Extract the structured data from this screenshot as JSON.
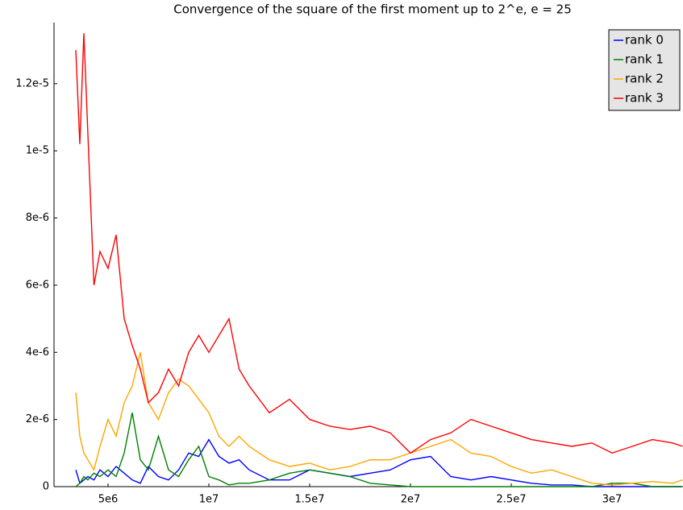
{
  "chart_data": {
    "type": "line",
    "title": "Convergence of the square of the first moment up to 2^e, e = 25",
    "x": [
      3400000,
      3600000,
      3800000,
      4000000,
      4300000,
      4600000,
      5000000,
      5400000,
      5800000,
      6200000,
      6600000,
      7000000,
      7500000,
      8000000,
      8500000,
      9000000,
      9500000,
      10000000,
      10500000,
      11000000,
      11500000,
      12000000,
      13000000,
      14000000,
      15000000,
      16000000,
      17000000,
      18000000,
      19000000,
      20000000,
      21000000,
      22000000,
      23000000,
      24000000,
      25000000,
      26000000,
      27000000,
      28000000,
      29000000,
      30000000,
      31000000,
      32000000,
      33000000,
      33500000
    ],
    "series": [
      {
        "name": "rank 0",
        "color": "#0000ff",
        "values": [
          5e-07,
          1e-07,
          2e-07,
          3e-07,
          2e-07,
          5e-07,
          3e-07,
          6e-07,
          4e-07,
          2e-07,
          1e-07,
          6e-07,
          3e-07,
          2e-07,
          5e-07,
          1e-06,
          9e-07,
          1.4e-06,
          9e-07,
          7e-07,
          8e-07,
          5e-07,
          2e-07,
          2e-07,
          5e-07,
          4e-07,
          3e-07,
          4e-07,
          5e-07,
          8e-07,
          9e-07,
          3e-07,
          2e-07,
          3e-07,
          2e-07,
          1e-07,
          5e-08,
          5e-08,
          0,
          0,
          0,
          0,
          0,
          0
        ]
      },
      {
        "name": "rank 1",
        "color": "#008000",
        "values": [
          0,
          1e-07,
          3e-07,
          2e-07,
          4e-07,
          3e-07,
          5e-07,
          3e-07,
          1e-06,
          2.2e-06,
          8e-07,
          5e-07,
          1.5e-06,
          5e-07,
          3e-07,
          8e-07,
          1.2e-06,
          3e-07,
          2e-07,
          5e-08,
          1e-07,
          1e-07,
          2e-07,
          4e-07,
          5e-07,
          4e-07,
          3e-07,
          1e-07,
          5e-08,
          0,
          0,
          0,
          0,
          0,
          0,
          0,
          0,
          0,
          0,
          1e-07,
          1e-07,
          0,
          0,
          0
        ]
      },
      {
        "name": "rank 2",
        "color": "#ffa500",
        "values": [
          2.8e-06,
          1.5e-06,
          1e-06,
          8e-07,
          5e-07,
          1.2e-06,
          2e-06,
          1.5e-06,
          2.5e-06,
          3e-06,
          4e-06,
          2.5e-06,
          2e-06,
          2.8e-06,
          3.2e-06,
          3e-06,
          2.6e-06,
          2.2e-06,
          1.5e-06,
          1.2e-06,
          1.5e-06,
          1.2e-06,
          8e-07,
          6e-07,
          7e-07,
          5e-07,
          6e-07,
          8e-07,
          8e-07,
          1e-06,
          1.2e-06,
          1.4e-06,
          1e-06,
          9e-07,
          6e-07,
          4e-07,
          5e-07,
          3e-07,
          1e-07,
          5e-08,
          1e-07,
          1.5e-07,
          1e-07,
          2e-07
        ]
      },
      {
        "name": "rank 3",
        "color": "#ff0000",
        "values": [
          1.3e-05,
          1.02e-05,
          1.35e-05,
          1.05e-05,
          6e-06,
          7e-06,
          6.5e-06,
          7.5e-06,
          5e-06,
          4.2e-06,
          3.5e-06,
          2.5e-06,
          2.8e-06,
          3.5e-06,
          3e-06,
          4e-06,
          4.5e-06,
          4e-06,
          4.5e-06,
          5e-06,
          3.5e-06,
          3e-06,
          2.2e-06,
          2.6e-06,
          2e-06,
          1.8e-06,
          1.7e-06,
          1.8e-06,
          1.6e-06,
          1e-06,
          1.4e-06,
          1.6e-06,
          2e-06,
          1.8e-06,
          1.6e-06,
          1.4e-06,
          1.3e-06,
          1.2e-06,
          1.3e-06,
          1e-06,
          1.2e-06,
          1.4e-06,
          1.3e-06,
          1.2e-06
        ]
      }
    ],
    "xlim": [
      2320000,
      33480000
    ],
    "ylim": [
      0,
      1.37e-05
    ],
    "xticks": [
      {
        "value": 5000000,
        "label": "5e6"
      },
      {
        "value": 10000000,
        "label": "1e7"
      },
      {
        "value": 15000000,
        "label": "1.5e7"
      },
      {
        "value": 20000000,
        "label": "2e7"
      },
      {
        "value": 25000000,
        "label": "2.5e7"
      },
      {
        "value": 30000000,
        "label": "3e7"
      }
    ],
    "yticks": [
      0,
      {
        "value": 2e-06,
        "label": "2e-6"
      },
      {
        "value": 4e-06,
        "label": "4e-6"
      },
      {
        "value": 6e-06,
        "label": "6e-6"
      },
      {
        "value": 8e-06,
        "label": "8e-6"
      },
      {
        "value": 1e-05,
        "label": "1e-5"
      },
      {
        "value": 1.2e-05,
        "label": "1.2e-5"
      }
    ],
    "legend": "upper right",
    "grid": false
  }
}
